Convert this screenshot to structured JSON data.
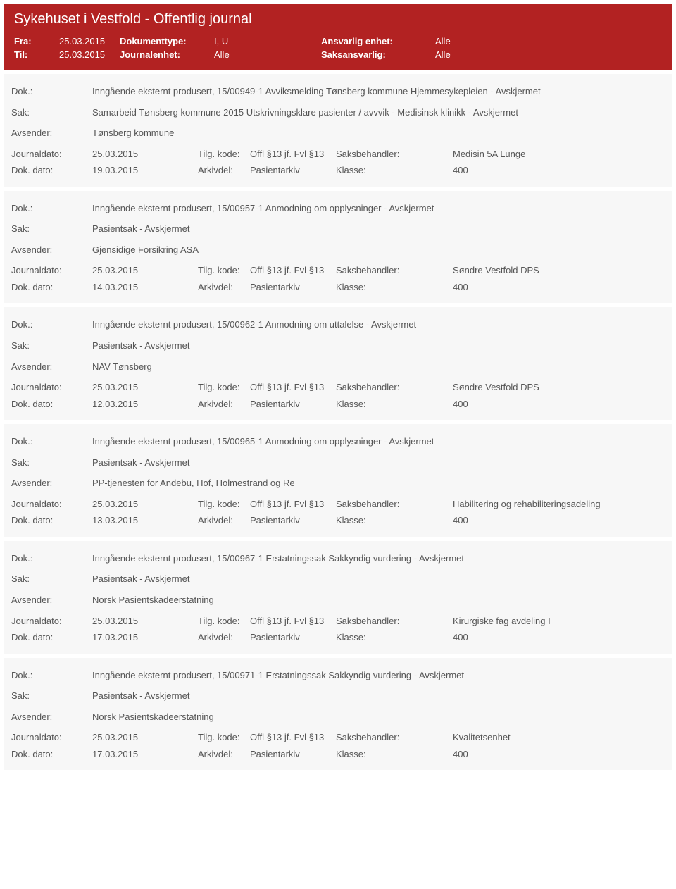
{
  "header": {
    "title": "Sykehuset i Vestfold - Offentlig journal",
    "row1": {
      "fra": "Fra:",
      "fra_val": "25.03.2015",
      "dokumenttype": "Dokumenttype:",
      "dokumenttype_val": "I, U",
      "ansvarlig": "Ansvarlig enhet:",
      "ansvarlig_val": "Alle"
    },
    "row2": {
      "til": "Til:",
      "til_val": "25.03.2015",
      "journalenhet": "Journalenhet:",
      "journalenhet_val": "Alle",
      "saks": "Saksansvarlig:",
      "saks_val": "Alle"
    }
  },
  "labels": {
    "dok": "Dok.:",
    "sak": "Sak:",
    "avsender": "Avsender:",
    "journaldato": "Journaldato:",
    "tilg": "Tilg. kode:",
    "saksbehandler": "Saksbehandler:",
    "dokdato": "Dok. dato:",
    "arkivdel": "Arkivdel:",
    "klasse": "Klasse:"
  },
  "records": [
    {
      "dok": "Inngående eksternt produsert, 15/00949-1 Avviksmelding Tønsberg kommune Hjemmesykepleien - Avskjermet",
      "sak": "Samarbeid Tønsberg kommune 2015 Utskrivningsklare pasienter / avvvik - Medisinsk klinikk - Avskjermet",
      "avsender": "Tønsberg kommune",
      "journaldato": "25.03.2015",
      "tilg": "Offl §13 jf. Fvl §13",
      "saksbehandler": "Medisin 5A Lunge",
      "dokdato": "19.03.2015",
      "arkivdel": "Pasientarkiv",
      "klasse": "400"
    },
    {
      "dok": "Inngående eksternt produsert, 15/00957-1 Anmodning om opplysninger - Avskjermet",
      "sak": "Pasientsak - Avskjermet",
      "avsender": "Gjensidige Forsikring ASA",
      "journaldato": "25.03.2015",
      "tilg": "Offl §13 jf. Fvl §13",
      "saksbehandler": "Søndre Vestfold DPS",
      "dokdato": "14.03.2015",
      "arkivdel": "Pasientarkiv",
      "klasse": "400"
    },
    {
      "dok": "Inngående eksternt produsert, 15/00962-1 Anmodning om uttalelse - Avskjermet",
      "sak": "Pasientsak - Avskjermet",
      "avsender": "NAV Tønsberg",
      "journaldato": "25.03.2015",
      "tilg": "Offl §13 jf. Fvl §13",
      "saksbehandler": "Søndre Vestfold DPS",
      "dokdato": "12.03.2015",
      "arkivdel": "Pasientarkiv",
      "klasse": "400"
    },
    {
      "dok": "Inngående eksternt produsert, 15/00965-1 Anmodning om opplysninger - Avskjermet",
      "sak": "Pasientsak - Avskjermet",
      "avsender": "PP-tjenesten for Andebu, Hof, Holmestrand og Re",
      "journaldato": "25.03.2015",
      "tilg": "Offl §13 jf. Fvl §13",
      "saksbehandler": "Habilitering og rehabiliteringsadeling",
      "dokdato": "13.03.2015",
      "arkivdel": "Pasientarkiv",
      "klasse": "400"
    },
    {
      "dok": "Inngående eksternt produsert, 15/00967-1 Erstatningssak Sakkyndig vurdering - Avskjermet",
      "sak": "Pasientsak - Avskjermet",
      "avsender": "Norsk Pasientskadeerstatning",
      "journaldato": "25.03.2015",
      "tilg": "Offl §13 jf. Fvl §13",
      "saksbehandler": "Kirurgiske fag avdeling I",
      "dokdato": "17.03.2015",
      "arkivdel": "Pasientarkiv",
      "klasse": "400"
    },
    {
      "dok": "Inngående eksternt produsert, 15/00971-1 Erstatningssak Sakkyndig vurdering - Avskjermet",
      "sak": "Pasientsak - Avskjermet",
      "avsender": "Norsk Pasientskadeerstatning",
      "journaldato": "25.03.2015",
      "tilg": "Offl §13 jf. Fvl §13",
      "saksbehandler": "Kvalitetsenhet",
      "dokdato": "17.03.2015",
      "arkivdel": "Pasientarkiv",
      "klasse": "400"
    }
  ]
}
